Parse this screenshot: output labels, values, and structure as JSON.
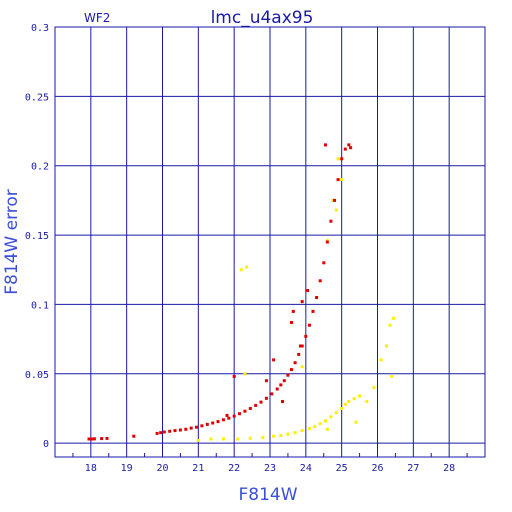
{
  "chart_data": {
    "type": "scatter",
    "title": "lmc_u4ax95",
    "chip_label": "WF2",
    "xlabel": "F814W",
    "ylabel": "F814W error",
    "xlim": [
      17.0,
      29.0
    ],
    "ylim": [
      -0.01,
      0.3
    ],
    "x_ticks": [
      "18",
      "19",
      "20",
      "21",
      "22",
      "23",
      "24",
      "25",
      "26",
      "27",
      "28"
    ],
    "y_ticks": [
      "0",
      "0.05",
      "0.1",
      "0.15",
      "0.2",
      "0.25",
      "0.3"
    ],
    "grid": true,
    "colors": {
      "frame": "#1a1aa8",
      "grid": "#1a1aa8",
      "red_series": "#e00000",
      "yellow_series": "#ffee00"
    },
    "series": [
      {
        "color": "red",
        "points": [
          [
            17.95,
            0.003
          ],
          [
            18.0,
            0.003
          ],
          [
            18.05,
            0.003
          ],
          [
            18.1,
            0.0031
          ],
          [
            18.3,
            0.0033
          ],
          [
            18.45,
            0.0034
          ],
          [
            19.2,
            0.005
          ],
          [
            19.85,
            0.007
          ],
          [
            19.95,
            0.0075
          ],
          [
            20.05,
            0.008
          ],
          [
            20.2,
            0.0085
          ],
          [
            20.35,
            0.009
          ],
          [
            20.5,
            0.0095
          ],
          [
            20.65,
            0.01
          ],
          [
            20.8,
            0.0108
          ],
          [
            20.95,
            0.0115
          ],
          [
            21.1,
            0.0125
          ],
          [
            21.25,
            0.0135
          ],
          [
            21.4,
            0.0145
          ],
          [
            21.55,
            0.0155
          ],
          [
            21.7,
            0.0168
          ],
          [
            21.85,
            0.018
          ],
          [
            22.0,
            0.0195
          ],
          [
            22.15,
            0.0212
          ],
          [
            22.3,
            0.023
          ],
          [
            22.45,
            0.025
          ],
          [
            22.6,
            0.0272
          ],
          [
            22.75,
            0.0296
          ],
          [
            22.9,
            0.0323
          ],
          [
            23.05,
            0.0355
          ],
          [
            23.2,
            0.039
          ],
          [
            23.3,
            0.042
          ],
          [
            23.4,
            0.045
          ],
          [
            23.5,
            0.049
          ],
          [
            23.6,
            0.053
          ],
          [
            23.7,
            0.058
          ],
          [
            23.8,
            0.064
          ],
          [
            23.9,
            0.07
          ],
          [
            24.0,
            0.077
          ],
          [
            24.1,
            0.085
          ],
          [
            24.2,
            0.095
          ],
          [
            24.3,
            0.105
          ],
          [
            24.4,
            0.117
          ],
          [
            24.5,
            0.13
          ],
          [
            24.6,
            0.145
          ],
          [
            24.7,
            0.16
          ],
          [
            24.8,
            0.175
          ],
          [
            24.9,
            0.19
          ],
          [
            25.0,
            0.205
          ],
          [
            25.1,
            0.212
          ],
          [
            25.2,
            0.215
          ],
          [
            25.25,
            0.213
          ],
          [
            23.6,
            0.087
          ],
          [
            23.65,
            0.095
          ],
          [
            23.9,
            0.102
          ],
          [
            24.05,
            0.11
          ],
          [
            23.85,
            0.07
          ],
          [
            23.35,
            0.03
          ],
          [
            22.0,
            0.048
          ],
          [
            22.9,
            0.045
          ],
          [
            21.8,
            0.02
          ],
          [
            23.1,
            0.06
          ],
          [
            24.55,
            0.215
          ]
        ]
      },
      {
        "color": "yellow",
        "points": [
          [
            21.0,
            0.002
          ],
          [
            21.35,
            0.003
          ],
          [
            21.7,
            0.003
          ],
          [
            22.1,
            0.003
          ],
          [
            22.45,
            0.0035
          ],
          [
            22.8,
            0.004
          ],
          [
            23.1,
            0.005
          ],
          [
            23.3,
            0.0055
          ],
          [
            23.5,
            0.0065
          ],
          [
            23.7,
            0.0075
          ],
          [
            23.9,
            0.009
          ],
          [
            24.1,
            0.0105
          ],
          [
            24.25,
            0.012
          ],
          [
            24.4,
            0.014
          ],
          [
            24.55,
            0.016
          ],
          [
            24.7,
            0.019
          ],
          [
            24.85,
            0.022
          ],
          [
            25.0,
            0.025
          ],
          [
            25.1,
            0.028
          ],
          [
            25.2,
            0.03
          ],
          [
            25.35,
            0.032
          ],
          [
            25.5,
            0.034
          ],
          [
            25.7,
            0.03
          ],
          [
            25.9,
            0.04
          ],
          [
            26.1,
            0.06
          ],
          [
            26.25,
            0.07
          ],
          [
            26.35,
            0.085
          ],
          [
            26.45,
            0.09
          ],
          [
            26.4,
            0.048
          ],
          [
            22.2,
            0.125
          ],
          [
            22.35,
            0.127
          ],
          [
            24.85,
            0.168
          ],
          [
            24.6,
            0.146
          ],
          [
            24.9,
            0.205
          ],
          [
            25.0,
            0.19
          ],
          [
            24.75,
            0.175
          ],
          [
            25.4,
            0.015
          ],
          [
            22.3,
            0.05
          ],
          [
            23.9,
            0.055
          ],
          [
            24.6,
            0.01
          ]
        ]
      }
    ]
  }
}
